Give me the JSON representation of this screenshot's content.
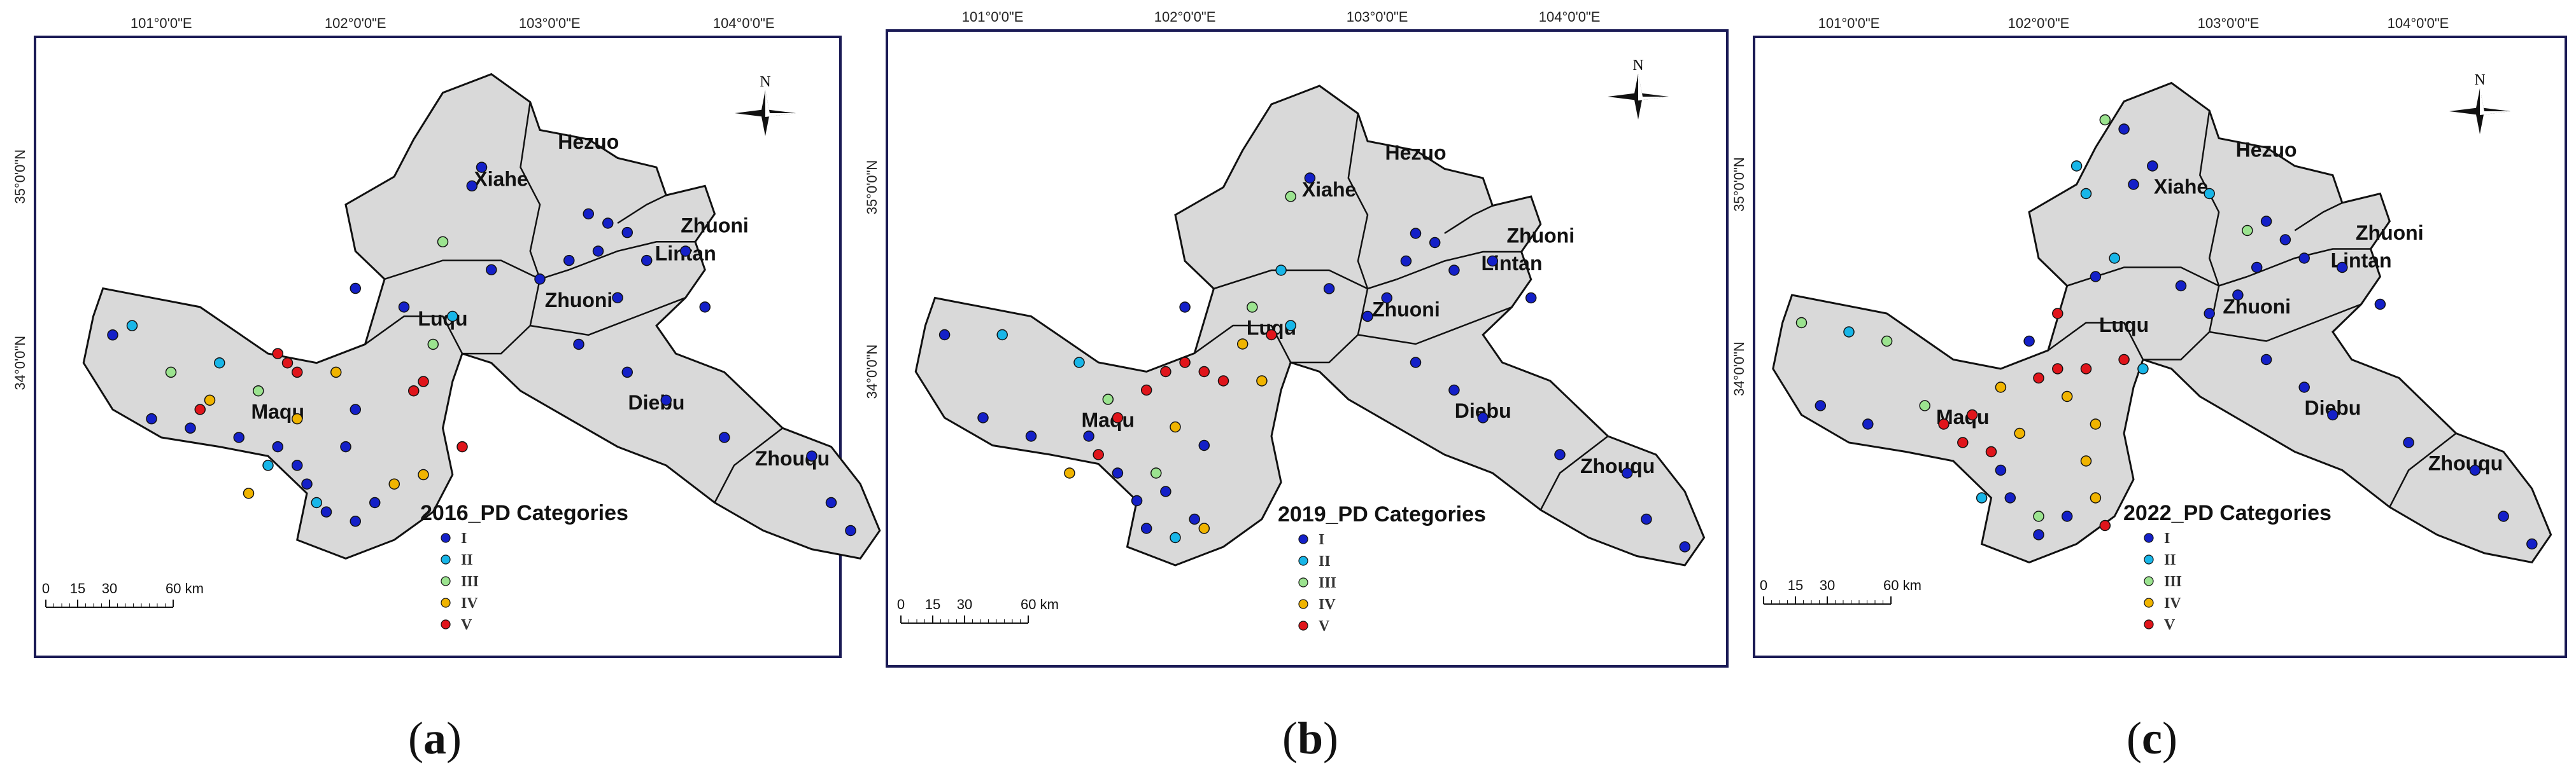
{
  "figure": {
    "longitude_labels": [
      "101°0'0\"E",
      "102°0'0\"E",
      "103°0'0\"E",
      "104°0'0\"E"
    ],
    "latitude_labels": [
      "35°0'0\"N",
      "34°0'0\"N"
    ],
    "counties": [
      "Xiahe",
      "Hezuo",
      "Zhuoni",
      "Lintan",
      "Luqu",
      "Zhuoni",
      "Diebu",
      "Maqu",
      "Zhouqu"
    ],
    "scale_bar": {
      "ticks": [
        "0",
        "15",
        "30",
        "60 km"
      ]
    },
    "north_label": "N",
    "legend_items": [
      "I",
      "II",
      "III",
      "IV",
      "V"
    ],
    "colors": {
      "I": "#1420c8",
      "II": "#18b6e8",
      "III": "#9be38f",
      "IV": "#f0b400",
      "V": "#e0151b",
      "frame": "#1a1a55",
      "terrain": "#d9d9d9",
      "boundary": "#111111"
    },
    "icons": [
      "north-arrow-icon"
    ]
  },
  "panels": [
    {
      "id": "a",
      "legend_title": "2016_PD Categories",
      "caption_open": "(",
      "caption_letter": "a",
      "caption_close": ")",
      "points": [
        {
          "lon": 101.6,
          "lat": 34.05,
          "cat": "V"
        },
        {
          "lon": 101.65,
          "lat": 34.0,
          "cat": "V"
        },
        {
          "lon": 101.7,
          "lat": 33.95,
          "cat": "V"
        },
        {
          "lon": 102.3,
          "lat": 33.85,
          "cat": "V"
        },
        {
          "lon": 102.35,
          "lat": 33.9,
          "cat": "V"
        },
        {
          "lon": 101.2,
          "lat": 33.75,
          "cat": "V"
        },
        {
          "lon": 102.55,
          "lat": 33.55,
          "cat": "V"
        },
        {
          "lon": 101.25,
          "lat": 33.8,
          "cat": "IV"
        },
        {
          "lon": 101.9,
          "lat": 33.95,
          "cat": "IV"
        },
        {
          "lon": 101.45,
          "lat": 33.3,
          "cat": "IV"
        },
        {
          "lon": 102.2,
          "lat": 33.35,
          "cat": "IV"
        },
        {
          "lon": 102.35,
          "lat": 33.4,
          "cat": "IV"
        },
        {
          "lon": 101.7,
          "lat": 33.7,
          "cat": "IV"
        },
        {
          "lon": 102.4,
          "lat": 34.1,
          "cat": "III"
        },
        {
          "lon": 102.45,
          "lat": 34.65,
          "cat": "III"
        },
        {
          "lon": 101.05,
          "lat": 33.95,
          "cat": "III"
        },
        {
          "lon": 101.5,
          "lat": 33.85,
          "cat": "III"
        },
        {
          "lon": 100.85,
          "lat": 34.2,
          "cat": "II"
        },
        {
          "lon": 101.3,
          "lat": 34.0,
          "cat": "II"
        },
        {
          "lon": 101.55,
          "lat": 33.45,
          "cat": "II"
        },
        {
          "lon": 101.8,
          "lat": 33.25,
          "cat": "II"
        },
        {
          "lon": 102.5,
          "lat": 34.25,
          "cat": "II"
        },
        {
          "lon": 102.65,
          "lat": 35.05,
          "cat": "I"
        },
        {
          "lon": 102.6,
          "lat": 34.95,
          "cat": "I"
        },
        {
          "lon": 103.2,
          "lat": 34.8,
          "cat": "I"
        },
        {
          "lon": 103.3,
          "lat": 34.75,
          "cat": "I"
        },
        {
          "lon": 103.4,
          "lat": 34.7,
          "cat": "I"
        },
        {
          "lon": 103.25,
          "lat": 34.6,
          "cat": "I"
        },
        {
          "lon": 103.1,
          "lat": 34.55,
          "cat": "I"
        },
        {
          "lon": 102.95,
          "lat": 34.45,
          "cat": "I"
        },
        {
          "lon": 103.35,
          "lat": 34.35,
          "cat": "I"
        },
        {
          "lon": 103.5,
          "lat": 34.55,
          "cat": "I"
        },
        {
          "lon": 103.7,
          "lat": 34.6,
          "cat": "I"
        },
        {
          "lon": 103.8,
          "lat": 34.3,
          "cat": "I"
        },
        {
          "lon": 103.15,
          "lat": 34.1,
          "cat": "I"
        },
        {
          "lon": 103.4,
          "lat": 33.95,
          "cat": "I"
        },
        {
          "lon": 103.6,
          "lat": 33.8,
          "cat": "I"
        },
        {
          "lon": 103.9,
          "lat": 33.6,
          "cat": "I"
        },
        {
          "lon": 104.35,
          "lat": 33.5,
          "cat": "I"
        },
        {
          "lon": 104.45,
          "lat": 33.25,
          "cat": "I"
        },
        {
          "lon": 104.55,
          "lat": 33.1,
          "cat": "I"
        },
        {
          "lon": 102.0,
          "lat": 34.4,
          "cat": "I"
        },
        {
          "lon": 100.95,
          "lat": 33.7,
          "cat": "I"
        },
        {
          "lon": 101.15,
          "lat": 33.65,
          "cat": "I"
        },
        {
          "lon": 101.6,
          "lat": 33.55,
          "cat": "I"
        },
        {
          "lon": 101.7,
          "lat": 33.45,
          "cat": "I"
        },
        {
          "lon": 101.75,
          "lat": 33.35,
          "cat": "I"
        },
        {
          "lon": 101.85,
          "lat": 33.2,
          "cat": "I"
        },
        {
          "lon": 102.0,
          "lat": 33.15,
          "cat": "I"
        },
        {
          "lon": 102.1,
          "lat": 33.25,
          "cat": "I"
        },
        {
          "lon": 101.95,
          "lat": 33.55,
          "cat": "I"
        },
        {
          "lon": 102.0,
          "lat": 33.75,
          "cat": "I"
        },
        {
          "lon": 100.75,
          "lat": 34.15,
          "cat": "I"
        },
        {
          "lon": 102.7,
          "lat": 34.5,
          "cat": "I"
        },
        {
          "lon": 102.25,
          "lat": 34.3,
          "cat": "I"
        },
        {
          "lon": 101.4,
          "lat": 33.6,
          "cat": "I"
        }
      ]
    },
    {
      "id": "b",
      "legend_title": "2019_PD Categories",
      "caption_open": "(",
      "caption_letter": "b",
      "caption_close": ")",
      "points": [
        {
          "lon": 101.9,
          "lat": 34.0,
          "cat": "V"
        },
        {
          "lon": 102.0,
          "lat": 34.05,
          "cat": "V"
        },
        {
          "lon": 102.1,
          "lat": 34.0,
          "cat": "V"
        },
        {
          "lon": 102.2,
          "lat": 33.95,
          "cat": "V"
        },
        {
          "lon": 101.8,
          "lat": 33.9,
          "cat": "V"
        },
        {
          "lon": 101.65,
          "lat": 33.75,
          "cat": "V"
        },
        {
          "lon": 101.55,
          "lat": 33.55,
          "cat": "V"
        },
        {
          "lon": 102.45,
          "lat": 34.2,
          "cat": "V"
        },
        {
          "lon": 101.4,
          "lat": 33.45,
          "cat": "IV"
        },
        {
          "lon": 102.3,
          "lat": 34.15,
          "cat": "IV"
        },
        {
          "lon": 102.4,
          "lat": 33.95,
          "cat": "IV"
        },
        {
          "lon": 101.95,
          "lat": 33.7,
          "cat": "IV"
        },
        {
          "lon": 102.1,
          "lat": 33.15,
          "cat": "IV"
        },
        {
          "lon": 102.55,
          "lat": 34.95,
          "cat": "III"
        },
        {
          "lon": 101.85,
          "lat": 33.45,
          "cat": "III"
        },
        {
          "lon": 101.6,
          "lat": 33.85,
          "cat": "III"
        },
        {
          "lon": 102.35,
          "lat": 34.35,
          "cat": "III"
        },
        {
          "lon": 101.05,
          "lat": 34.2,
          "cat": "II"
        },
        {
          "lon": 101.45,
          "lat": 34.05,
          "cat": "II"
        },
        {
          "lon": 102.5,
          "lat": 34.55,
          "cat": "II"
        },
        {
          "lon": 102.55,
          "lat": 34.25,
          "cat": "II"
        },
        {
          "lon": 101.95,
          "lat": 33.1,
          "cat": "II"
        },
        {
          "lon": 102.65,
          "lat": 35.05,
          "cat": "I"
        },
        {
          "lon": 103.2,
          "lat": 34.75,
          "cat": "I"
        },
        {
          "lon": 103.3,
          "lat": 34.7,
          "cat": "I"
        },
        {
          "lon": 103.15,
          "lat": 34.6,
          "cat": "I"
        },
        {
          "lon": 103.4,
          "lat": 34.55,
          "cat": "I"
        },
        {
          "lon": 103.05,
          "lat": 34.4,
          "cat": "I"
        },
        {
          "lon": 102.95,
          "lat": 34.3,
          "cat": "I"
        },
        {
          "lon": 103.6,
          "lat": 34.6,
          "cat": "I"
        },
        {
          "lon": 103.8,
          "lat": 34.4,
          "cat": "I"
        },
        {
          "lon": 103.2,
          "lat": 34.05,
          "cat": "I"
        },
        {
          "lon": 103.4,
          "lat": 33.9,
          "cat": "I"
        },
        {
          "lon": 103.55,
          "lat": 33.75,
          "cat": "I"
        },
        {
          "lon": 103.95,
          "lat": 33.55,
          "cat": "I"
        },
        {
          "lon": 104.3,
          "lat": 33.45,
          "cat": "I"
        },
        {
          "lon": 104.4,
          "lat": 33.2,
          "cat": "I"
        },
        {
          "lon": 104.6,
          "lat": 33.05,
          "cat": "I"
        },
        {
          "lon": 102.0,
          "lat": 34.35,
          "cat": "I"
        },
        {
          "lon": 100.75,
          "lat": 34.2,
          "cat": "I"
        },
        {
          "lon": 100.95,
          "lat": 33.75,
          "cat": "I"
        },
        {
          "lon": 101.2,
          "lat": 33.65,
          "cat": "I"
        },
        {
          "lon": 101.65,
          "lat": 33.45,
          "cat": "I"
        },
        {
          "lon": 101.75,
          "lat": 33.3,
          "cat": "I"
        },
        {
          "lon": 101.8,
          "lat": 33.15,
          "cat": "I"
        },
        {
          "lon": 102.05,
          "lat": 33.2,
          "cat": "I"
        },
        {
          "lon": 101.9,
          "lat": 33.35,
          "cat": "I"
        },
        {
          "lon": 102.75,
          "lat": 34.45,
          "cat": "I"
        },
        {
          "lon": 101.5,
          "lat": 33.65,
          "cat": "I"
        },
        {
          "lon": 102.1,
          "lat": 33.6,
          "cat": "I"
        }
      ]
    },
    {
      "id": "c",
      "legend_title": "2022_PD Categories",
      "caption_open": "(",
      "caption_letter": "c",
      "caption_close": ")",
      "points": [
        {
          "lon": 101.65,
          "lat": 33.75,
          "cat": "V"
        },
        {
          "lon": 101.6,
          "lat": 33.6,
          "cat": "V"
        },
        {
          "lon": 101.75,
          "lat": 33.55,
          "cat": "V"
        },
        {
          "lon": 102.0,
          "lat": 33.95,
          "cat": "V"
        },
        {
          "lon": 102.1,
          "lat": 34.0,
          "cat": "V"
        },
        {
          "lon": 102.25,
          "lat": 34.0,
          "cat": "V"
        },
        {
          "lon": 102.45,
          "lat": 34.05,
          "cat": "V"
        },
        {
          "lon": 102.1,
          "lat": 34.3,
          "cat": "V"
        },
        {
          "lon": 101.5,
          "lat": 33.7,
          "cat": "V"
        },
        {
          "lon": 102.35,
          "lat": 33.15,
          "cat": "V"
        },
        {
          "lon": 102.15,
          "lat": 33.85,
          "cat": "IV"
        },
        {
          "lon": 102.3,
          "lat": 33.7,
          "cat": "IV"
        },
        {
          "lon": 102.25,
          "lat": 33.5,
          "cat": "IV"
        },
        {
          "lon": 101.9,
          "lat": 33.65,
          "cat": "IV"
        },
        {
          "lon": 102.3,
          "lat": 33.3,
          "cat": "IV"
        },
        {
          "lon": 101.8,
          "lat": 33.9,
          "cat": "IV"
        },
        {
          "lon": 100.75,
          "lat": 34.25,
          "cat": "III"
        },
        {
          "lon": 102.35,
          "lat": 35.35,
          "cat": "III"
        },
        {
          "lon": 103.1,
          "lat": 34.75,
          "cat": "III"
        },
        {
          "lon": 102.0,
          "lat": 33.2,
          "cat": "III"
        },
        {
          "lon": 101.2,
          "lat": 34.15,
          "cat": "III"
        },
        {
          "lon": 101.4,
          "lat": 33.8,
          "cat": "III"
        },
        {
          "lon": 102.2,
          "lat": 35.1,
          "cat": "II"
        },
        {
          "lon": 102.25,
          "lat": 34.95,
          "cat": "II"
        },
        {
          "lon": 102.9,
          "lat": 34.95,
          "cat": "II"
        },
        {
          "lon": 102.4,
          "lat": 34.6,
          "cat": "II"
        },
        {
          "lon": 101.0,
          "lat": 34.2,
          "cat": "II"
        },
        {
          "lon": 102.55,
          "lat": 34.0,
          "cat": "II"
        },
        {
          "lon": 101.7,
          "lat": 33.3,
          "cat": "II"
        },
        {
          "lon": 102.45,
          "lat": 35.3,
          "cat": "I"
        },
        {
          "lon": 102.6,
          "lat": 35.1,
          "cat": "I"
        },
        {
          "lon": 102.5,
          "lat": 35.0,
          "cat": "I"
        },
        {
          "lon": 103.2,
          "lat": 34.8,
          "cat": "I"
        },
        {
          "lon": 103.3,
          "lat": 34.7,
          "cat": "I"
        },
        {
          "lon": 103.15,
          "lat": 34.55,
          "cat": "I"
        },
        {
          "lon": 103.4,
          "lat": 34.6,
          "cat": "I"
        },
        {
          "lon": 103.05,
          "lat": 34.4,
          "cat": "I"
        },
        {
          "lon": 102.9,
          "lat": 34.3,
          "cat": "I"
        },
        {
          "lon": 103.6,
          "lat": 34.55,
          "cat": "I"
        },
        {
          "lon": 103.8,
          "lat": 34.35,
          "cat": "I"
        },
        {
          "lon": 103.2,
          "lat": 34.05,
          "cat": "I"
        },
        {
          "lon": 103.4,
          "lat": 33.9,
          "cat": "I"
        },
        {
          "lon": 103.55,
          "lat": 33.75,
          "cat": "I"
        },
        {
          "lon": 103.95,
          "lat": 33.6,
          "cat": "I"
        },
        {
          "lon": 104.3,
          "lat": 33.45,
          "cat": "I"
        },
        {
          "lon": 104.45,
          "lat": 33.2,
          "cat": "I"
        },
        {
          "lon": 104.6,
          "lat": 33.05,
          "cat": "I"
        },
        {
          "lon": 100.85,
          "lat": 33.8,
          "cat": "I"
        },
        {
          "lon": 101.1,
          "lat": 33.7,
          "cat": "I"
        },
        {
          "lon": 101.8,
          "lat": 33.45,
          "cat": "I"
        },
        {
          "lon": 101.85,
          "lat": 33.3,
          "cat": "I"
        },
        {
          "lon": 102.0,
          "lat": 33.1,
          "cat": "I"
        },
        {
          "lon": 102.15,
          "lat": 33.2,
          "cat": "I"
        },
        {
          "lon": 101.95,
          "lat": 34.15,
          "cat": "I"
        },
        {
          "lon": 102.75,
          "lat": 34.45,
          "cat": "I"
        },
        {
          "lon": 102.3,
          "lat": 34.5,
          "cat": "I"
        }
      ]
    }
  ]
}
